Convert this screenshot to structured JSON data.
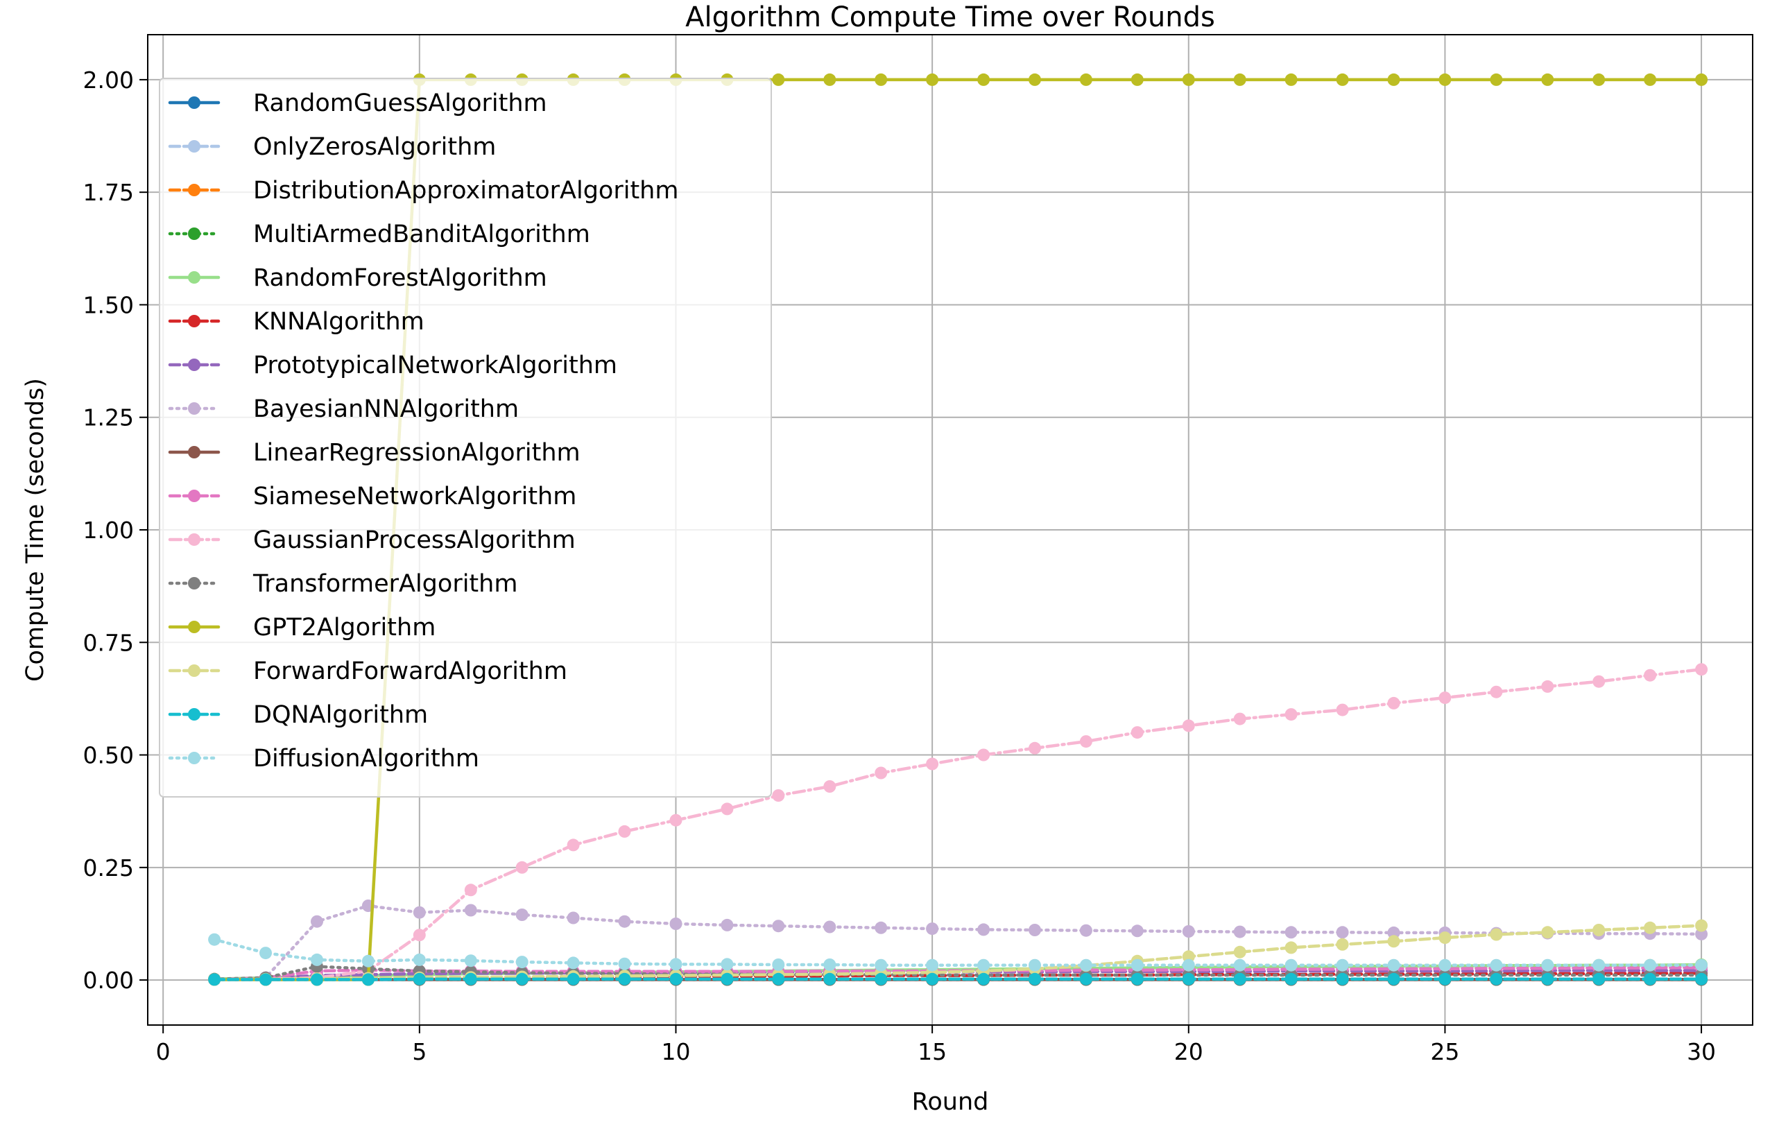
{
  "chart_data": {
    "type": "line",
    "title": "Algorithm Compute Time over Rounds",
    "xlabel": "Round",
    "ylabel": "Compute Time (seconds)",
    "xlim": [
      -0.3,
      31.0
    ],
    "ylim": [
      -0.1,
      2.1
    ],
    "xticks": [
      0,
      5,
      10,
      15,
      20,
      25,
      30
    ],
    "xtick_labels": [
      "0",
      "5",
      "10",
      "15",
      "20",
      "25",
      "30"
    ],
    "yticks": [
      0,
      0.25,
      0.5,
      0.75,
      1.0,
      1.25,
      1.5,
      1.75,
      2.0
    ],
    "ytick_labels": [
      "0.00",
      "0.25",
      "0.50",
      "0.75",
      "1.00",
      "1.25",
      "1.50",
      "1.75",
      "2.00"
    ],
    "grid": true,
    "legend_position": "top-left",
    "x": [
      1,
      2,
      3,
      4,
      5,
      6,
      7,
      8,
      9,
      10,
      11,
      12,
      13,
      14,
      15,
      16,
      17,
      18,
      19,
      20,
      21,
      22,
      23,
      24,
      25,
      26,
      27,
      28,
      29,
      30
    ],
    "series": [
      {
        "name": "RandomGuessAlgorithm",
        "color": "#1f77b4",
        "dash": "solid",
        "values": [
          0.001,
          0.001,
          0.001,
          0.001,
          0.001,
          0.001,
          0.001,
          0.001,
          0.001,
          0.001,
          0.001,
          0.001,
          0.001,
          0.001,
          0.001,
          0.001,
          0.001,
          0.001,
          0.001,
          0.001,
          0.001,
          0.001,
          0.001,
          0.001,
          0.001,
          0.001,
          0.001,
          0.001,
          0.001,
          0.001
        ]
      },
      {
        "name": "OnlyZerosAlgorithm",
        "color": "#aec7e8",
        "dash": "dashed",
        "values": [
          0.001,
          0.001,
          0.001,
          0.001,
          0.001,
          0.001,
          0.001,
          0.001,
          0.001,
          0.001,
          0.001,
          0.001,
          0.001,
          0.001,
          0.001,
          0.001,
          0.001,
          0.001,
          0.001,
          0.001,
          0.001,
          0.001,
          0.001,
          0.001,
          0.001,
          0.001,
          0.001,
          0.001,
          0.001,
          0.001
        ]
      },
      {
        "name": "DistributionApproximatorAlgorithm",
        "color": "#ff7f0e",
        "dash": "dashed",
        "values": [
          0.002,
          0.002,
          0.002,
          0.002,
          0.002,
          0.002,
          0.002,
          0.002,
          0.002,
          0.002,
          0.002,
          0.002,
          0.002,
          0.002,
          0.002,
          0.002,
          0.002,
          0.002,
          0.002,
          0.002,
          0.002,
          0.002,
          0.002,
          0.002,
          0.002,
          0.002,
          0.002,
          0.002,
          0.002,
          0.002
        ]
      },
      {
        "name": "MultiArmedBanditAlgorithm",
        "color": "#2ca02c",
        "dash": "dotted",
        "values": [
          0.001,
          0.001,
          0.001,
          0.001,
          0.001,
          0.001,
          0.001,
          0.001,
          0.001,
          0.001,
          0.001,
          0.001,
          0.001,
          0.001,
          0.001,
          0.001,
          0.001,
          0.001,
          0.001,
          0.001,
          0.001,
          0.001,
          0.001,
          0.001,
          0.001,
          0.001,
          0.001,
          0.001,
          0.001,
          0.001
        ]
      },
      {
        "name": "RandomForestAlgorithm",
        "color": "#98df8a",
        "dash": "solid",
        "values": [
          0.002,
          0.005,
          0.008,
          0.01,
          0.012,
          0.014,
          0.015,
          0.016,
          0.017,
          0.018,
          0.019,
          0.02,
          0.021,
          0.022,
          0.023,
          0.024,
          0.025,
          0.026,
          0.027,
          0.028,
          0.029,
          0.03,
          0.03,
          0.031,
          0.031,
          0.032,
          0.032,
          0.033,
          0.033,
          0.034
        ]
      },
      {
        "name": "KNNAlgorithm",
        "color": "#d62728",
        "dash": "dashed",
        "values": [
          0.001,
          0.002,
          0.003,
          0.004,
          0.005,
          0.006,
          0.006,
          0.007,
          0.007,
          0.008,
          0.008,
          0.009,
          0.009,
          0.01,
          0.01,
          0.01,
          0.011,
          0.011,
          0.011,
          0.012,
          0.012,
          0.012,
          0.013,
          0.013,
          0.013,
          0.014,
          0.014,
          0.014,
          0.015,
          0.015
        ]
      },
      {
        "name": "PrototypicalNetworkAlgorithm",
        "color": "#9467bd",
        "dash": "dashed",
        "values": [
          0.001,
          0.004,
          0.01,
          0.012,
          0.014,
          0.015,
          0.015,
          0.016,
          0.016,
          0.016,
          0.017,
          0.017,
          0.017,
          0.018,
          0.018,
          0.018,
          0.018,
          0.019,
          0.019,
          0.019,
          0.019,
          0.02,
          0.02,
          0.02,
          0.02,
          0.02,
          0.021,
          0.021,
          0.021,
          0.021
        ]
      },
      {
        "name": "BayesianNNAlgorithm",
        "color": "#c5b0d5",
        "dash": "dotted",
        "values": [
          0.001,
          0.005,
          0.13,
          0.165,
          0.15,
          0.155,
          0.145,
          0.138,
          0.13,
          0.125,
          0.122,
          0.12,
          0.118,
          0.116,
          0.114,
          0.112,
          0.111,
          0.11,
          0.109,
          0.108,
          0.107,
          0.106,
          0.106,
          0.105,
          0.105,
          0.104,
          0.104,
          0.103,
          0.103,
          0.102
        ]
      },
      {
        "name": "LinearRegressionAlgorithm",
        "color": "#8c564b",
        "dash": "solid",
        "values": [
          0.001,
          0.001,
          0.001,
          0.001,
          0.001,
          0.001,
          0.001,
          0.001,
          0.001,
          0.001,
          0.001,
          0.001,
          0.001,
          0.001,
          0.001,
          0.001,
          0.001,
          0.001,
          0.001,
          0.001,
          0.001,
          0.001,
          0.001,
          0.001,
          0.001,
          0.001,
          0.001,
          0.001,
          0.001,
          0.001
        ]
      },
      {
        "name": "SiameseNetworkAlgorithm",
        "color": "#e377c2",
        "dash": "dashed",
        "values": [
          0.001,
          0.005,
          0.02,
          0.022,
          0.02,
          0.02,
          0.019,
          0.019,
          0.019,
          0.019,
          0.019,
          0.019,
          0.02,
          0.02,
          0.02,
          0.021,
          0.021,
          0.022,
          0.022,
          0.023,
          0.023,
          0.024,
          0.024,
          0.025,
          0.025,
          0.026,
          0.026,
          0.027,
          0.027,
          0.028
        ]
      },
      {
        "name": "GaussianProcessAlgorithm",
        "color": "#f7b6d2",
        "dash": "dashdot",
        "values": [
          0.001,
          0.002,
          0.005,
          0.02,
          0.1,
          0.2,
          0.25,
          0.3,
          0.33,
          0.355,
          0.38,
          0.41,
          0.43,
          0.46,
          0.48,
          0.5,
          0.515,
          0.53,
          0.55,
          0.565,
          0.58,
          0.59,
          0.6,
          0.615,
          0.627,
          0.64,
          0.652,
          0.663,
          0.677,
          0.69
        ]
      },
      {
        "name": "TransformerAlgorithm",
        "color": "#7f7f7f",
        "dash": "dotted",
        "values": [
          0.002,
          0.005,
          0.03,
          0.025,
          0.02,
          0.018,
          0.016,
          0.015,
          0.014,
          0.013,
          0.013,
          0.012,
          0.012,
          0.012,
          0.011,
          0.011,
          0.011,
          0.011,
          0.011,
          0.011,
          0.011,
          0.011,
          0.011,
          0.011,
          0.011,
          0.011,
          0.011,
          0.011,
          0.011,
          0.011
        ]
      },
      {
        "name": "GPT2Algorithm",
        "color": "#bcbd22",
        "dash": "solid",
        "values": [
          0.001,
          0.001,
          0.001,
          0.001,
          2.0,
          2.0,
          2.0,
          2.0,
          2.0,
          2.0,
          2.0,
          2.0,
          2.0,
          2.0,
          2.0,
          2.0,
          2.0,
          2.0,
          2.0,
          2.0,
          2.0,
          2.0,
          2.0,
          2.0,
          2.0,
          2.0,
          2.0,
          2.0,
          2.0,
          2.0
        ]
      },
      {
        "name": "ForwardForwardAlgorithm",
        "color": "#dbdb8d",
        "dash": "dashed",
        "values": [
          0.001,
          0.002,
          0.003,
          0.004,
          0.005,
          0.006,
          0.007,
          0.008,
          0.009,
          0.01,
          0.011,
          0.012,
          0.013,
          0.015,
          0.017,
          0.02,
          0.025,
          0.032,
          0.042,
          0.052,
          0.062,
          0.072,
          0.079,
          0.086,
          0.094,
          0.101,
          0.106,
          0.111,
          0.116,
          0.121
        ]
      },
      {
        "name": "DQNAlgorithm",
        "color": "#17becf",
        "dash": "dashed",
        "values": [
          0.001,
          0.001,
          0.001,
          0.001,
          0.002,
          0.002,
          0.002,
          0.002,
          0.002,
          0.002,
          0.002,
          0.002,
          0.002,
          0.002,
          0.002,
          0.002,
          0.002,
          0.002,
          0.002,
          0.002,
          0.002,
          0.002,
          0.002,
          0.002,
          0.002,
          0.002,
          0.002,
          0.002,
          0.002,
          0.002
        ]
      },
      {
        "name": "DiffusionAlgorithm",
        "color": "#9edae5",
        "dash": "dotted",
        "values": [
          0.09,
          0.06,
          0.045,
          0.042,
          0.045,
          0.043,
          0.04,
          0.038,
          0.036,
          0.035,
          0.035,
          0.034,
          0.034,
          0.033,
          0.033,
          0.033,
          0.033,
          0.033,
          0.033,
          0.033,
          0.033,
          0.033,
          0.033,
          0.033,
          0.033,
          0.033,
          0.033,
          0.033,
          0.033,
          0.033
        ]
      }
    ]
  }
}
